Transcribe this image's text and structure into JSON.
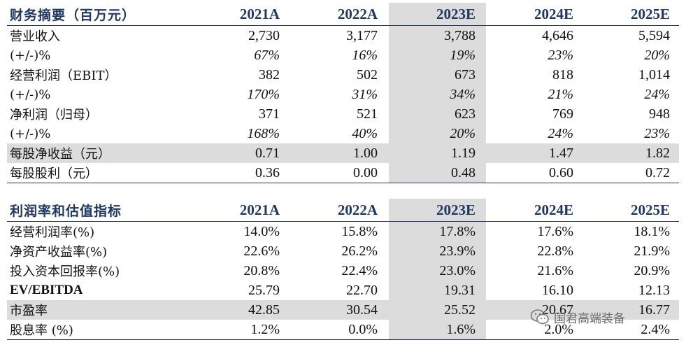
{
  "table1": {
    "title": "财务摘要（百万元）",
    "years": [
      "2021A",
      "2022A",
      "2023E",
      "2024E",
      "2025E"
    ],
    "rows": [
      {
        "label": "营业收入",
        "values": [
          "2,730",
          "3,177",
          "3,788",
          "4,646",
          "5,594"
        ]
      },
      {
        "label": "(+/-)%",
        "values": [
          "67%",
          "16%",
          "19%",
          "23%",
          "20%"
        ]
      },
      {
        "label": "经营利润（EBIT）",
        "values": [
          "382",
          "502",
          "673",
          "818",
          "1,014"
        ]
      },
      {
        "label": "(+/-)%",
        "values": [
          "170%",
          "31%",
          "34%",
          "21%",
          "24%"
        ]
      },
      {
        "label": "净利润（归母）",
        "values": [
          "371",
          "521",
          "623",
          "769",
          "948"
        ]
      },
      {
        "label": "(+/-)%",
        "values": [
          "168%",
          "40%",
          "20%",
          "24%",
          "23%"
        ]
      },
      {
        "label": "每股净收益（元）",
        "values": [
          "0.71",
          "1.00",
          "1.19",
          "1.47",
          "1.82"
        ]
      },
      {
        "label": "每股股利（元）",
        "values": [
          "0.36",
          "0.00",
          "0.48",
          "0.60",
          "0.72"
        ]
      }
    ]
  },
  "table2": {
    "title": "利润率和估值指标",
    "years": [
      "2021A",
      "2022A",
      "2023E",
      "2024E",
      "2025E"
    ],
    "rows": [
      {
        "label": "经营利润率(%)",
        "values": [
          "14.0%",
          "15.8%",
          "17.8%",
          "17.6%",
          "18.1%"
        ]
      },
      {
        "label": "净资产收益率(%)",
        "values": [
          "22.6%",
          "26.2%",
          "23.9%",
          "22.8%",
          "21.9%"
        ]
      },
      {
        "label": "投入资本回报率(%)",
        "values": [
          "20.8%",
          "22.4%",
          "23.0%",
          "21.6%",
          "20.9%"
        ]
      },
      {
        "label": "EV/EBITDA",
        "values": [
          "25.79",
          "22.70",
          "19.31",
          "16.10",
          "12.13"
        ]
      },
      {
        "label": "市盈率",
        "values": [
          "42.85",
          "30.54",
          "25.52",
          "20.67",
          "16.77"
        ]
      },
      {
        "label": "股息率 (%)",
        "values": [
          "1.2%",
          "0.0%",
          "1.6%",
          "2.0%",
          "2.4%"
        ]
      }
    ]
  },
  "watermark": {
    "text": "国君高端装备",
    "icon": "wechat-icon"
  },
  "colors": {
    "header_text": "#1f3864",
    "shade": "#dcdcdc",
    "rule": "#1f3864"
  }
}
